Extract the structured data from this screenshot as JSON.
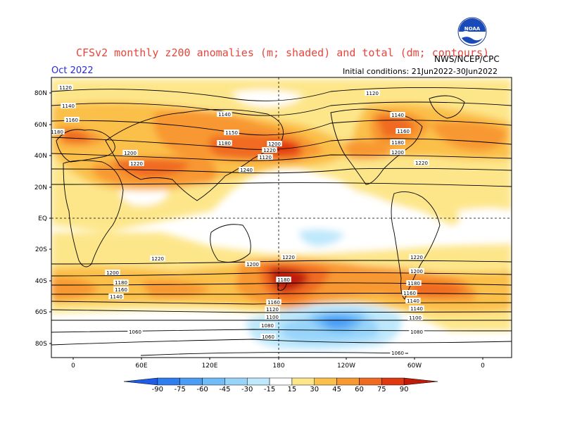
{
  "title": "CFSv2 monthly z200 anomalies (m; shaded) and total (dm; contours)",
  "valid_month": "Oct 2022",
  "agency": "NWS/NCEP/CPC",
  "initial_conditions": "Initial conditions: 21Jun2022-30Jun2022",
  "logo": {
    "icon": "noaa-logo-icon",
    "text": "NOAA"
  },
  "lat_labels": [
    "80N",
    "60N",
    "40N",
    "20N",
    "EQ",
    "20S",
    "40S",
    "60S",
    "80S"
  ],
  "lon_labels": [
    "0",
    "60E",
    "120E",
    "180",
    "120W",
    "60W",
    "0"
  ],
  "contour_labels": [
    "1120",
    "1140",
    "1160",
    "1180",
    "1200",
    "1220",
    "1240",
    "1120",
    "1140",
    "1150",
    "1180",
    "1200",
    "1220",
    "1120",
    "1140",
    "1160",
    "1180",
    "1200",
    "1220",
    "1220",
    "1200",
    "1180",
    "1160",
    "1140",
    "1220",
    "1200",
    "1180",
    "1160",
    "1140",
    "1120",
    "1100",
    "1080",
    "1060",
    "1220",
    "1200",
    "1180",
    "1160",
    "1140",
    "1100",
    "1080",
    "1060",
    "1060"
  ],
  "colorbar": {
    "ticks": [
      "-90",
      "-75",
      "-60",
      "-45",
      "-30",
      "-15",
      "15",
      "30",
      "45",
      "60",
      "75",
      "90"
    ],
    "colors": [
      "#1e5ce8",
      "#2e7ef0",
      "#4a9cf4",
      "#70bcf8",
      "#98d4fa",
      "#bee8fc",
      "#ffffff",
      "#fde68a",
      "#fbc04a",
      "#f89830",
      "#f06a20",
      "#e03810",
      "#c01a08"
    ]
  }
}
